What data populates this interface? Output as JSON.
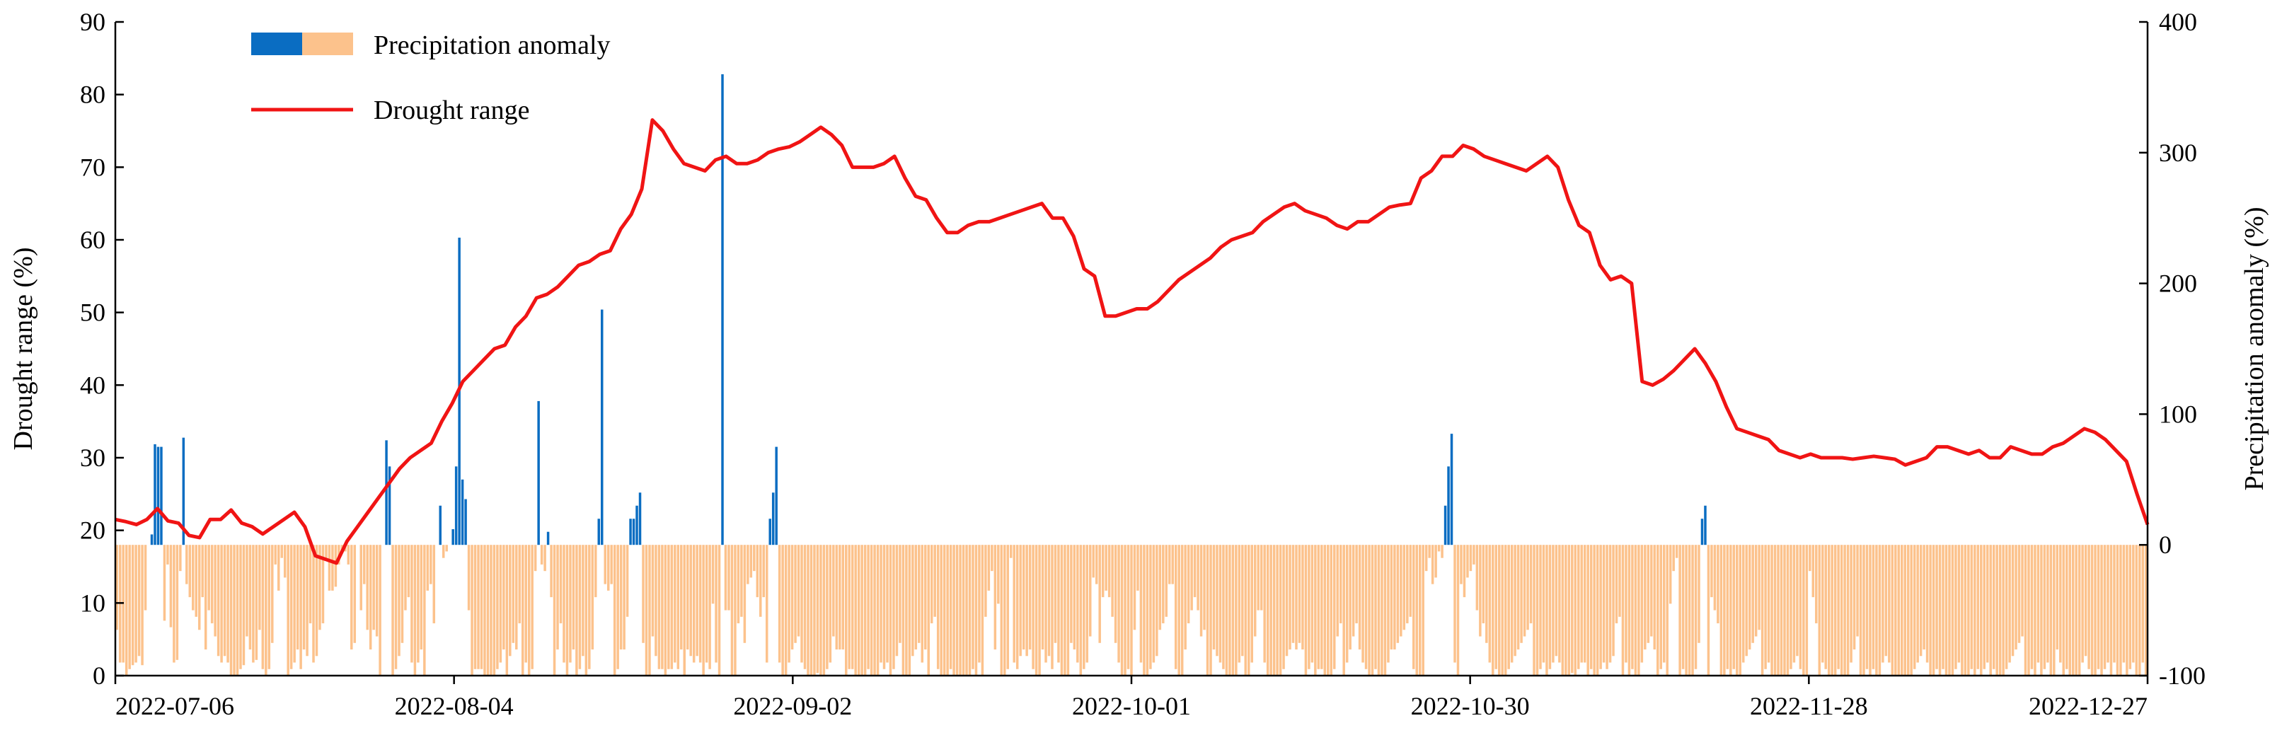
{
  "chart_data": {
    "type": "bar+line",
    "x_tick_labels": [
      "2022-07-06",
      "2022-08-04",
      "2022-09-02",
      "2022-10-01",
      "2022-10-30",
      "2022-11-28",
      "2022-12-27"
    ],
    "x_range": [
      "2022-07-06",
      "2022-12-27"
    ],
    "left_axis": {
      "label": "Drought range (%)",
      "ylim": [
        0,
        90
      ],
      "ticks": [
        0,
        10,
        20,
        30,
        40,
        50,
        60,
        70,
        80,
        90
      ]
    },
    "right_axis": {
      "label": "Precipitation anomaly (%)",
      "ylim": [
        -100,
        400
      ],
      "ticks": [
        -100,
        0,
        100,
        200,
        300,
        400
      ]
    },
    "legend": {
      "position": "top-left",
      "entries": [
        "Precipitation anomaly",
        "Drought range"
      ]
    },
    "colors": {
      "positive_bar": "#0a6dc2",
      "negative_bar": "#fcc28c",
      "line": "#f01414"
    },
    "grid": false,
    "series": [
      {
        "name": "Precipitation anomaly",
        "kind": "bar",
        "axis": "right",
        "start_date": "2022-07-06",
        "values": [
          -65,
          -90,
          -90,
          -100,
          -95,
          -92,
          -90,
          -85,
          -92,
          -50,
          0,
          8,
          77,
          75,
          75,
          -58,
          -15,
          -63,
          -90,
          -88,
          -20,
          82,
          -30,
          -40,
          -50,
          -55,
          -65,
          -40,
          -80,
          -50,
          -60,
          -70,
          -85,
          -90,
          -85,
          -90,
          -100,
          -100,
          -100,
          -95,
          -92,
          -70,
          -80,
          -90,
          -88,
          -65,
          -95,
          -100,
          -95,
          -75,
          -15,
          -35,
          -10,
          -25,
          -100,
          -95,
          -90,
          -80,
          -95,
          -80,
          -85,
          -60,
          -90,
          -85,
          -65,
          -60,
          -10,
          -35,
          -35,
          -32,
          -15,
          -5,
          -5,
          -15,
          -80,
          -75,
          0,
          -50,
          -30,
          -65,
          -80,
          -65,
          -70,
          -100,
          0,
          80,
          60,
          -100,
          -95,
          -85,
          -75,
          -50,
          -40,
          -90,
          -100,
          -90,
          -80,
          -100,
          -35,
          -30,
          -60,
          0,
          30,
          -10,
          -5,
          0,
          12,
          60,
          235,
          50,
          35,
          -50,
          -100,
          -95,
          -95,
          -95,
          -100,
          -100,
          -100,
          -100,
          -95,
          -90,
          -80,
          -100,
          -85,
          -75,
          -80,
          -60,
          -100,
          -90,
          -100,
          -95,
          -20,
          110,
          -15,
          -20,
          10,
          -40,
          -100,
          -80,
          -60,
          -90,
          -100,
          -90,
          -80,
          -100,
          -95,
          -85,
          -100,
          -95,
          -80,
          -40,
          20,
          180,
          -30,
          -35,
          -30,
          -100,
          -95,
          -80,
          -80,
          -55,
          20,
          20,
          30,
          40,
          -75,
          -100,
          -100,
          -70,
          -85,
          -95,
          -95,
          -100,
          -95,
          -95,
          -90,
          -95,
          -80,
          -100,
          -80,
          -85,
          -90,
          -85,
          -90,
          -100,
          -90,
          -95,
          -45,
          -90,
          -100,
          360,
          -50,
          -50,
          -100,
          -100,
          -60,
          -55,
          -75,
          -30,
          -25,
          -20,
          -40,
          -55,
          -40,
          -90,
          20,
          40,
          75,
          -90,
          -100,
          -100,
          -90,
          -80,
          -75,
          -70,
          -90,
          -95,
          -100,
          -100,
          -100,
          -98,
          -100,
          -100,
          -95,
          -90,
          -70,
          -80,
          -80,
          -80,
          -100,
          -95,
          -95,
          -100,
          -100,
          -100,
          -100,
          -95,
          -100,
          -100,
          -100,
          -90,
          -95,
          -90,
          -100,
          -95,
          -85,
          -75,
          -100,
          -100,
          -100,
          -85,
          -80,
          -75,
          -90,
          -80,
          -100,
          -60,
          -55,
          -95,
          -100,
          -100,
          -100,
          -95,
          -100,
          -100,
          -100,
          -100,
          -100,
          -100,
          -95,
          -100,
          -90,
          -100,
          -55,
          -35,
          -20,
          -80,
          -45,
          -100,
          -100,
          -95,
          -10,
          -90,
          -95,
          -85,
          -80,
          -85,
          -80,
          -95,
          -100,
          -100,
          -80,
          -90,
          -85,
          -95,
          -75,
          -90,
          -100,
          -100,
          -100,
          -75,
          -80,
          -90,
          -100,
          -95,
          -90,
          -70,
          -25,
          -30,
          -75,
          -40,
          -35,
          -40,
          -55,
          -75,
          -90,
          -100,
          -100,
          -95,
          -100,
          -65,
          -35,
          -90,
          -100,
          -100,
          -95,
          -90,
          -85,
          -65,
          -60,
          -55,
          -30,
          -30,
          -95,
          -100,
          -100,
          -80,
          -60,
          -50,
          -40,
          -50,
          -70,
          -65,
          -100,
          -100,
          -80,
          -85,
          -90,
          -95,
          -100,
          -100,
          -100,
          -100,
          -90,
          -85,
          -100,
          -100,
          -90,
          -70,
          -50,
          -50,
          -90,
          -100,
          -100,
          -100,
          -100,
          -100,
          -95,
          -85,
          -80,
          -75,
          -80,
          -75,
          -80,
          -100,
          -95,
          -90,
          -100,
          -95,
          -95,
          -100,
          -100,
          -100,
          -95,
          -70,
          -60,
          -100,
          -90,
          -80,
          -70,
          -60,
          -80,
          -90,
          -95,
          -100,
          -100,
          -95,
          -100,
          -100,
          -100,
          -90,
          -80,
          -80,
          -75,
          -70,
          -65,
          -60,
          -55,
          -95,
          -100,
          -100,
          -100,
          -20,
          -10,
          -30,
          -25,
          -5,
          -10,
          30,
          60,
          85,
          -90,
          -100,
          -30,
          -40,
          -25,
          -20,
          -15,
          -50,
          -70,
          -60,
          -75,
          -90,
          -100,
          -95,
          -100,
          -100,
          -100,
          -95,
          -90,
          -85,
          -80,
          -75,
          -70,
          -65,
          -60,
          -100,
          -100,
          -95,
          -90,
          -100,
          -95,
          -90,
          -85,
          -90,
          -100,
          -100,
          -100,
          -98,
          -100,
          -95,
          -90,
          -90,
          -100,
          -95,
          -100,
          -100,
          -95,
          -90,
          -95,
          -90,
          -85,
          -60,
          -55,
          -100,
          -90,
          -100,
          -95,
          -100,
          -100,
          -90,
          -80,
          -75,
          -70,
          -80,
          -100,
          -95,
          -90,
          -100,
          -45,
          -20,
          -10,
          -100,
          -95,
          -100,
          -100,
          -100,
          -95,
          -75,
          20,
          30,
          -100,
          -40,
          -50,
          -60,
          -100,
          -100,
          -95,
          -100,
          -95,
          -100,
          -100,
          -90,
          -85,
          -80,
          -75,
          -70,
          -65,
          -100,
          -95,
          -90,
          -100,
          -100,
          -100,
          -100,
          -100,
          -100,
          -95,
          -90,
          -85,
          -95,
          -100,
          -100,
          -20,
          -40,
          -60,
          -100,
          -90,
          -95,
          -100,
          -100,
          -100,
          -95,
          -100,
          -100,
          -100,
          -90,
          -80,
          -70,
          -100,
          -100,
          -95,
          -100,
          -95,
          -100,
          -100,
          -90,
          -85,
          -90,
          -100,
          -100,
          -100,
          -100,
          -100,
          -100,
          -100,
          -95,
          -90,
          -85,
          -80,
          -90,
          -100,
          -100,
          -95,
          -100,
          -95,
          -100,
          -100,
          -100,
          -95,
          -90,
          -100,
          -100,
          -100,
          -95,
          -100,
          -95,
          -100,
          -95,
          -90,
          -100,
          -95,
          -100,
          -100,
          -100,
          -95,
          -90,
          -85,
          -80,
          -75,
          -70,
          -100,
          -100,
          -95,
          -100,
          -90,
          -100,
          -95,
          -90,
          -100,
          -100,
          -80,
          -90,
          -100,
          -95,
          -100,
          -100,
          -100,
          -100,
          -90,
          -85,
          -95,
          -100,
          -100,
          -95,
          -100,
          -95,
          -90,
          -100,
          -90,
          -100,
          -100,
          -90,
          -100,
          -95,
          -90,
          -100,
          -100,
          -90,
          -100
        ]
      },
      {
        "name": "Drought range",
        "kind": "line",
        "axis": "left",
        "start_date": "2022-07-06",
        "values": [
          21.5,
          21.2,
          20.8,
          21.5,
          23.0,
          21.3,
          21.0,
          19.3,
          19.0,
          21.5,
          21.5,
          22.8,
          21.0,
          20.5,
          19.5,
          20.5,
          21.5,
          22.5,
          20.5,
          16.5,
          16.0,
          15.5,
          18.5,
          20.5,
          22.5,
          24.5,
          26.5,
          28.5,
          30.0,
          31.0,
          32.0,
          35.0,
          37.5,
          40.5,
          42.0,
          43.5,
          45.0,
          45.5,
          48.0,
          49.5,
          52.0,
          52.5,
          53.5,
          55.0,
          56.5,
          57.0,
          58.0,
          58.5,
          61.5,
          63.5,
          67.0,
          76.5,
          75.0,
          72.5,
          70.5,
          70.0,
          69.5,
          71.0,
          71.5,
          70.5,
          70.5,
          71.0,
          72.0,
          72.5,
          72.8,
          73.5,
          74.5,
          75.5,
          74.5,
          73.0,
          70.0,
          70.0,
          70.0,
          70.5,
          71.5,
          68.5,
          66.0,
          65.5,
          63.0,
          61.0,
          61.0,
          62.0,
          62.5,
          62.5,
          63.0,
          63.5,
          64.0,
          64.5,
          65.0,
          63.0,
          63.0,
          60.5,
          56.0,
          55.0,
          49.5,
          49.5,
          50.0,
          50.5,
          50.5,
          51.5,
          53.0,
          54.5,
          55.5,
          56.5,
          57.5,
          59.0,
          60.0,
          60.5,
          61.0,
          62.5,
          63.5,
          64.5,
          65.0,
          64.0,
          63.5,
          63.0,
          62.0,
          61.5,
          62.5,
          62.5,
          63.5,
          64.5,
          64.8,
          65.0,
          68.5,
          69.5,
          71.5,
          71.5,
          73.0,
          72.5,
          71.5,
          71.0,
          70.5,
          70.0,
          69.5,
          70.5,
          71.5,
          70.0,
          65.5,
          62.0,
          61.0,
          56.5,
          54.5,
          55.0,
          54.0,
          40.5,
          40.0,
          40.8,
          42.0,
          43.5,
          45.0,
          43.0,
          40.5,
          37.0,
          34.0,
          33.5,
          33.0,
          32.5,
          31.0,
          30.5,
          30.0,
          30.5,
          30.0,
          30.0,
          30.0,
          29.8,
          30.0,
          30.2,
          30.0,
          29.8,
          29.0,
          29.5,
          30.0,
          31.5,
          31.5,
          31.0,
          30.5,
          31.0,
          30.0,
          30.0,
          31.5,
          31.0,
          30.5,
          30.5,
          31.5,
          32.0,
          33.0,
          34.0,
          33.5,
          32.5,
          31.0,
          29.5,
          25.0,
          20.8
        ]
      }
    ]
  }
}
